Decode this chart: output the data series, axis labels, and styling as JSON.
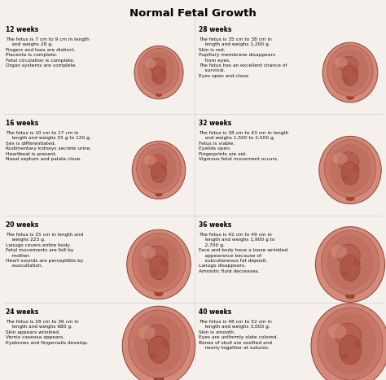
{
  "title": "Normal Fetal Growth",
  "title_fontsize": 9.5,
  "title_fontweight": "bold",
  "bg_color": "#f5f0eb",
  "text_color": "#111111",
  "week_color": "#000000",
  "week_fontsize": 5.5,
  "body_fontsize": 4.2,
  "entries": [
    {
      "week": "12 weeks",
      "col": 0,
      "row": 0,
      "text": "The fetus is 7 cm to 9 cm in length\n    and weighs 28 g.\nFingers and toes are distinct.\nPlacenta is complete.\nFetal circulation is complete.\nOrgan systems are complete."
    },
    {
      "week": "16 weeks",
      "col": 0,
      "row": 1,
      "text": "The fetus is 10 cm to 17 cm in\n    length and weighs 55 g to 120 g.\nSex is differentiated.\nRudimentary kidneys secrete urine.\nHeartbeat is present.\nNasal septum and palate close."
    },
    {
      "week": "20 weeks",
      "col": 0,
      "row": 2,
      "text": "The fetus is 25 cm in length and\n    weighs 223 g.\nLanugo covers entire body.\nFetal movements are felt by\n    mother.\nHeart sounds are perceptible by\n    auscultation."
    },
    {
      "week": "24 weeks",
      "col": 0,
      "row": 3,
      "text": "The fetus is 28 cm to 36 cm in\n    length and weighs 680 g.\nSkin appears wrinkled.\nVernix caseosa appears.\nEyebrows and fingernails develop."
    },
    {
      "week": "28 weeks",
      "col": 1,
      "row": 0,
      "text": "The fetus is 35 cm to 38 cm in\n    length and weighs 1,200 g.\nSkin is red.\nPupillary membrane disappears\n    from eyes.\nThe fetus has an excellent chance of\n    survival.\nEyes open and close."
    },
    {
      "week": "32 weeks",
      "col": 1,
      "row": 1,
      "text": "The fetus is 38 cm to 43 cm in length\n    and weighs 1,500 to 2,500 g.\nFetus is viable.\nEyelids open.\nFingerprints are set.\nVigorous fetal movement occurs."
    },
    {
      "week": "36 weeks",
      "col": 1,
      "row": 2,
      "text": "The fetus is 42 cm to 49 cm in\n    length and weighs 1,900 g to\n    2,700 g.\nFace and body have a loose wrinkled\n    appearance because of\n    subcutaneous fat deposit.\nLanugo disappears.\nAmniotic fluid decreases."
    },
    {
      "week": "40 weeks",
      "col": 1,
      "row": 3,
      "text": "The fetus is 48 cm to 52 cm in\n    length and weighs 3,000 g.\nSkin is smooth.\nEyes are uniformly slate colored.\nBones of skull are ossified and\n    nearly together at sutures."
    }
  ],
  "img_scales": [
    0.55,
    0.6,
    0.72,
    0.82,
    0.62,
    0.7,
    0.78,
    0.88
  ]
}
